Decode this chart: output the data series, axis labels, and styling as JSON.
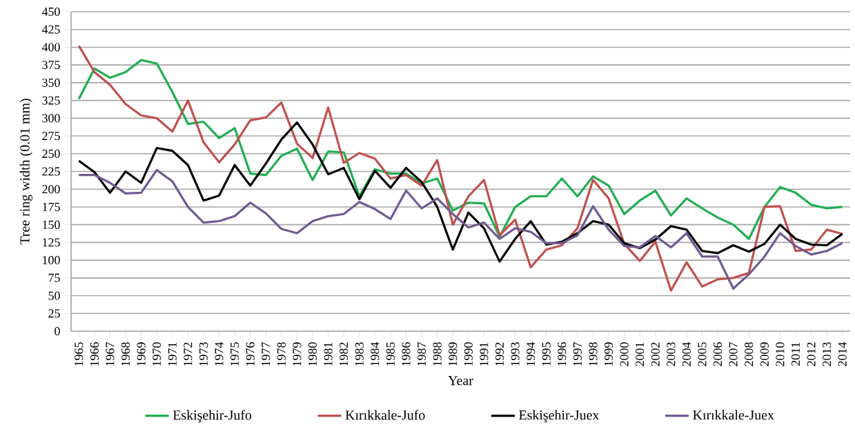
{
  "chart_data": {
    "type": "line",
    "xlabel": "Year",
    "ylabel": "Tree ring width (0.01 mm)",
    "categories": [
      "1965",
      "1966",
      "1967",
      "1968",
      "1969",
      "1970",
      "1971",
      "1972",
      "1973",
      "1974",
      "1975",
      "1976",
      "1977",
      "1978",
      "1979",
      "1980",
      "1981",
      "1982",
      "1983",
      "1984",
      "1985",
      "1986",
      "1987",
      "1988",
      "1989",
      "1990",
      "1991",
      "1992",
      "1993",
      "1994",
      "1995",
      "1996",
      "1997",
      "1998",
      "1999",
      "2000",
      "2001",
      "2002",
      "2003",
      "2004",
      "2005",
      "2006",
      "2007",
      "2008",
      "2009",
      "2010",
      "2011",
      "2012",
      "2013",
      "2014"
    ],
    "series": [
      {
        "name": "Eskişehir-Jufo",
        "color": "#1fae4f",
        "values": [
          327,
          370,
          357,
          365,
          382,
          377,
          337,
          292,
          295,
          272,
          286,
          222,
          220,
          247,
          257,
          213,
          253,
          252,
          190,
          228,
          222,
          222,
          208,
          215,
          170,
          181,
          180,
          133,
          175,
          190,
          190,
          215,
          190,
          218,
          205,
          165,
          184,
          198,
          163,
          187,
          173,
          160,
          150,
          130,
          175,
          203,
          195,
          178,
          173,
          175
        ]
      },
      {
        "name": "Kırıkkale-Jufo",
        "color": "#c0504d",
        "values": [
          402,
          365,
          347,
          320,
          304,
          300,
          281,
          325,
          266,
          238,
          263,
          297,
          301,
          322,
          264,
          244,
          315,
          237,
          251,
          243,
          215,
          220,
          205,
          241,
          150,
          190,
          213,
          135,
          157,
          90,
          115,
          121,
          145,
          213,
          187,
          123,
          99,
          126,
          57,
          97,
          63,
          73,
          75,
          82,
          175,
          176,
          113,
          115,
          143,
          137
        ]
      },
      {
        "name": "Eskişehir-Juex",
        "color": "#000000",
        "values": [
          240,
          224,
          195,
          225,
          209,
          258,
          254,
          234,
          184,
          191,
          234,
          205,
          236,
          270,
          294,
          263,
          221,
          230,
          186,
          226,
          202,
          230,
          210,
          175,
          115,
          167,
          145,
          98,
          130,
          155,
          122,
          126,
          138,
          155,
          150,
          124,
          117,
          129,
          148,
          143,
          113,
          110,
          121,
          112,
          123,
          150,
          130,
          122,
          121,
          137
        ]
      },
      {
        "name": "Kırıkkale-Juex",
        "color": "#6f5a92",
        "values": [
          220,
          220,
          209,
          194,
          195,
          227,
          211,
          175,
          153,
          155,
          162,
          181,
          166,
          144,
          138,
          155,
          162,
          165,
          182,
          172,
          158,
          198,
          173,
          187,
          165,
          146,
          153,
          130,
          145,
          140,
          124,
          124,
          135,
          176,
          143,
          120,
          118,
          134,
          118,
          138,
          105,
          105,
          60,
          80,
          105,
          138,
          120,
          108,
          113,
          124
        ]
      }
    ],
    "ylim": [
      0,
      450
    ],
    "yticks": [
      0,
      25,
      50,
      75,
      100,
      125,
      150,
      175,
      200,
      225,
      250,
      275,
      300,
      325,
      350,
      375,
      400,
      425,
      450
    ],
    "grid": "y",
    "legend": "bottom",
    "marker": "none",
    "line_style": "solid"
  }
}
